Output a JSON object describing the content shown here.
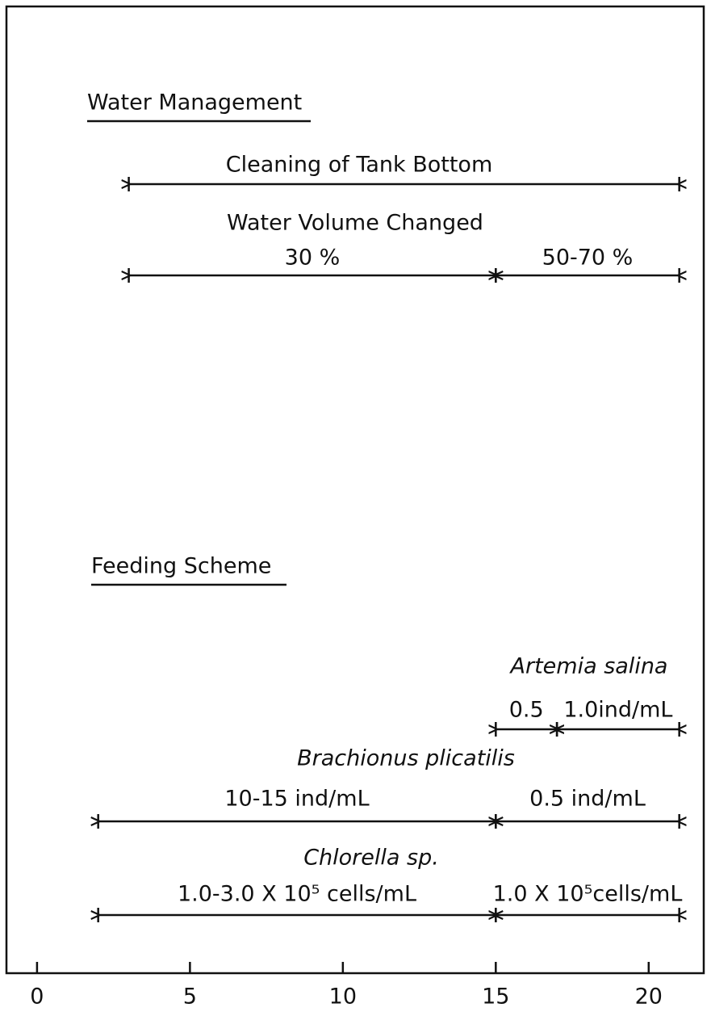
{
  "chart_data": {
    "type": "timeline",
    "xlim": [
      -1,
      21.8
    ],
    "xticks": [
      0,
      5,
      10,
      15,
      20
    ],
    "sections": [
      {
        "title": "Water Management",
        "groups": [
          {
            "name": "Cleaning of Tank Bottom",
            "segments": [
              {
                "start": 3,
                "end": 21
              }
            ]
          },
          {
            "name": "Water Volume Changed",
            "segments": [
              {
                "label": "30 %",
                "start": 3,
                "end": 15
              },
              {
                "label": "50-70 %",
                "start": 15,
                "end": 21
              }
            ]
          }
        ]
      },
      {
        "title": "Feeding Scheme",
        "groups": [
          {
            "name": "Artemia salina",
            "segments": [
              {
                "label": "0.5",
                "start": 15,
                "end": 17
              },
              {
                "label": "1.0ind/mL",
                "start": 17,
                "end": 21
              }
            ]
          },
          {
            "name": "Brachionus plicatilis",
            "segments": [
              {
                "label": "10-15 ind/mL",
                "start": 2,
                "end": 15
              },
              {
                "label": "0.5 ind/mL",
                "start": 15,
                "end": 21
              }
            ]
          },
          {
            "name": "Chlorella sp.",
            "segments": [
              {
                "label": "1.0-3.0 X 10⁵ cells/mL",
                "start": 2,
                "end": 15
              },
              {
                "label": "1.0 X 10⁵cells/mL",
                "start": 15,
                "end": 21
              }
            ]
          }
        ]
      }
    ]
  }
}
